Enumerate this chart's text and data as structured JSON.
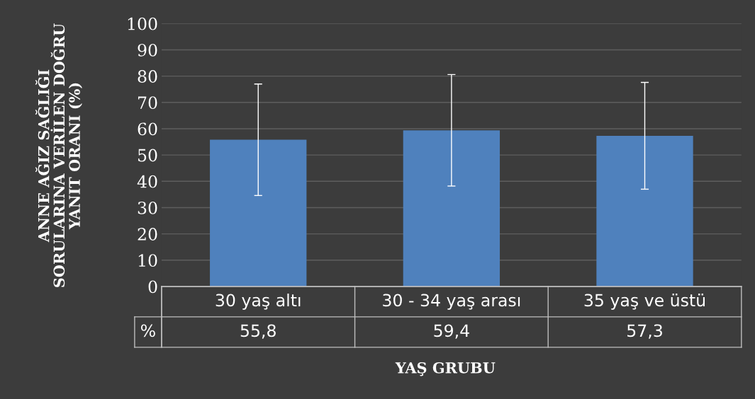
{
  "chart_data": {
    "type": "bar",
    "ylabel": "ANNE AĞIZ SAĞLIĞI\nSORULARINA VERİLEN DOĞRU\nYANIT ORANI (%)",
    "xlabel": "YAŞ GRUBU",
    "categories": [
      "30 yaş altı",
      "30 - 34 yaş arası",
      "35 yaş ve üstü"
    ],
    "series": [
      {
        "name": "%",
        "color": "#4f81bd",
        "values": [
          55.8,
          59.4,
          57.3
        ],
        "errors": [
          21.2,
          21.2,
          20.3
        ],
        "value_labels": [
          "55,8",
          "59,4",
          "57,3"
        ]
      }
    ],
    "ylim": [
      0,
      100
    ],
    "yticks": [
      0,
      10,
      20,
      30,
      40,
      50,
      60,
      70,
      80,
      90,
      100
    ],
    "grid": "y",
    "data_labels": true,
    "legend": false
  }
}
